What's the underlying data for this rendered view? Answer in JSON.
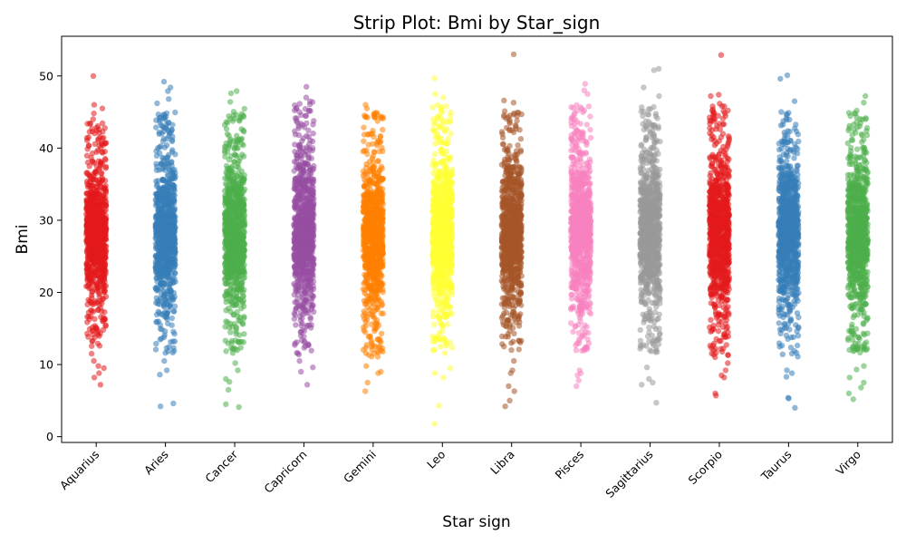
{
  "chart_data": {
    "type": "scatter",
    "title": "Strip Plot: Bmi by Star_sign",
    "xlabel": "Star sign",
    "ylabel": "Bmi",
    "ylim": [
      -0.8,
      55.5
    ],
    "yticks": [
      0,
      10,
      20,
      30,
      40,
      50
    ],
    "grid": false,
    "categories": [
      "Aquarius",
      "Aries",
      "Cancer",
      "Capricorn",
      "Gemini",
      "Leo",
      "Libra",
      "Pisces",
      "Sagittarius",
      "Scorpio",
      "Taurus",
      "Virgo"
    ],
    "colors": [
      "#e41a1c",
      "#377eb8",
      "#4daf4a",
      "#984ea3",
      "#ff7f00",
      "#ffff33",
      "#a65628",
      "#f781bf",
      "#999999",
      "#e41a1c",
      "#377eb8",
      "#4daf4a"
    ],
    "series": [
      {
        "category": "Aquarius",
        "core_range": [
          12.5,
          43.5
        ],
        "outliers": [
          50.0,
          46.0,
          45.5,
          44.8,
          44.0,
          11.5,
          10.5,
          9.8,
          9.5,
          8.8,
          8.2,
          7.2
        ]
      },
      {
        "category": "Aries",
        "core_range": [
          11.5,
          45.0
        ],
        "outliers": [
          49.2,
          48.4,
          47.9,
          46.8,
          46.2,
          10.5,
          9.2,
          8.6,
          4.6,
          4.2
        ]
      },
      {
        "category": "Cancer",
        "core_range": [
          11.5,
          45.5
        ],
        "outliers": [
          47.9,
          47.6,
          46.4,
          10.2,
          9.2,
          8.0,
          7.6,
          6.5,
          4.5,
          4.1
        ]
      },
      {
        "category": "Capricorn",
        "core_range": [
          11.0,
          46.5
        ],
        "outliers": [
          48.5,
          47.0,
          10.5,
          9.6,
          9.0,
          7.2
        ]
      },
      {
        "category": "Gemini",
        "core_range": [
          11.0,
          45.0
        ],
        "outliers": [
          46.0,
          45.5,
          9.8,
          9.0,
          8.8,
          7.5,
          6.3
        ]
      },
      {
        "category": "Leo",
        "core_range": [
          11.5,
          46.0
        ],
        "outliers": [
          49.7,
          47.5,
          47.0,
          9.5,
          8.8,
          8.2,
          4.3,
          1.8
        ]
      },
      {
        "category": "Libra",
        "core_range": [
          12.0,
          45.5
        ],
        "outliers": [
          53.0,
          46.6,
          46.3,
          10.5,
          9.2,
          8.8,
          7.0,
          6.3,
          5.0,
          4.2
        ]
      },
      {
        "category": "Pisces",
        "core_range": [
          11.5,
          46.0
        ],
        "outliers": [
          48.9,
          48.0,
          47.5,
          9.2,
          8.8,
          8.5,
          7.8,
          7.0
        ]
      },
      {
        "category": "Sagittarius",
        "core_range": [
          11.5,
          46.0
        ],
        "outliers": [
          51.0,
          50.8,
          48.4,
          47.2,
          9.6,
          8.0,
          7.5,
          7.2,
          4.7
        ]
      },
      {
        "category": "Scorpio",
        "core_range": [
          11.0,
          46.5
        ],
        "outliers": [
          52.9,
          47.4,
          47.2,
          10.2,
          9.2,
          8.5,
          8.2,
          6.0,
          5.7
        ]
      },
      {
        "category": "Taurus",
        "core_range": [
          11.0,
          45.5
        ],
        "outliers": [
          50.1,
          49.6,
          46.5,
          9.2,
          8.8,
          8.3,
          5.4,
          5.3,
          4.0
        ]
      },
      {
        "category": "Virgo",
        "core_range": [
          11.5,
          45.0
        ],
        "outliers": [
          47.2,
          46.3,
          45.2,
          9.8,
          9.3,
          8.2,
          7.5,
          6.8,
          6.0,
          5.2
        ]
      }
    ]
  }
}
